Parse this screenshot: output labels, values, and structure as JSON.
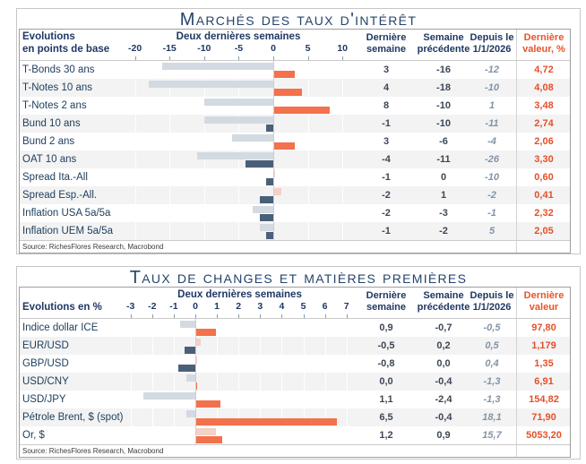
{
  "tables": [
    {
      "title": "Marchés des taux d'intérêt",
      "unit_label_lines": [
        "Evolutions",
        "en points de base"
      ],
      "chart_header": "Deux dernières semaines",
      "ticks": [
        "-20",
        "-15",
        "-10",
        "-5",
        "0",
        "5",
        "10"
      ],
      "col_headers": [
        [
          "Dernière",
          "semaine"
        ],
        [
          "Semaine",
          "précédente"
        ],
        [
          "Depuis le",
          "1/1/2026"
        ],
        [
          "Dernière",
          "valeur, %"
        ]
      ],
      "rows": [
        {
          "label": "T-Bonds 30 ans",
          "last": "3",
          "prev": "-16",
          "since": "-12",
          "value": "4,72"
        },
        {
          "label": "T-Notes 10 ans",
          "last": "4",
          "prev": "-18",
          "since": "-10",
          "value": "4,08"
        },
        {
          "label": "T-Notes 2 ans",
          "last": "8",
          "prev": "-10",
          "since": "1",
          "value": "3,48"
        },
        {
          "label": "Bund 10 ans",
          "last": "-1",
          "prev": "-10",
          "since": "-11",
          "value": "2,74"
        },
        {
          "label": "Bund 2 ans",
          "last": "3",
          "prev": "-6",
          "since": "-4",
          "value": "2,06"
        },
        {
          "label": "OAT 10 ans",
          "last": "-4",
          "prev": "-11",
          "since": "-26",
          "value": "3,30"
        },
        {
          "label": "Spread Ita.-All",
          "last": "-1",
          "prev": "0",
          "since": "-10",
          "value": "0,60"
        },
        {
          "label": "Spread Esp.-All.",
          "last": "-2",
          "prev": "1",
          "since": "-2",
          "value": "0,41"
        },
        {
          "label": "Inflation USA 5a/5a",
          "last": "-2",
          "prev": "-3",
          "since": "-1",
          "value": "2,32"
        },
        {
          "label": "Inflation UEM 5a/5a",
          "last": "-1",
          "prev": "-2",
          "since": "5",
          "value": "2,05"
        }
      ],
      "source": "Source: RichesFlores Research, Macrobond"
    },
    {
      "title": "Taux de changes et matières premières",
      "unit_label_lines": [
        "Evolutions en %"
      ],
      "chart_header": "Deux dernières semaines",
      "ticks": [
        "-3",
        "-2",
        "-1",
        "0",
        "1",
        "2",
        "3",
        "4",
        "5",
        "6",
        "7"
      ],
      "col_headers": [
        [
          "Dernière",
          "semaine"
        ],
        [
          "Semaine",
          "précédente"
        ],
        [
          "Depuis le",
          "1/1/2026"
        ],
        [
          "Dernière",
          "valeur"
        ]
      ],
      "rows": [
        {
          "label": "Indice dollar ICE",
          "last": "0,9",
          "prev": "-0,7",
          "since": "-0,5",
          "value": "97,80"
        },
        {
          "label": "EUR/USD",
          "last": "-0,5",
          "prev": "0,2",
          "since": "0,5",
          "value": "1,179"
        },
        {
          "label": "GBP/USD",
          "last": "-0,8",
          "prev": "0,0",
          "since": "0,4",
          "value": "1,35"
        },
        {
          "label": "USD/CNY",
          "last": "0,0",
          "prev": "-0,4",
          "since": "-1,3",
          "value": "6,91"
        },
        {
          "label": "USD/JPY",
          "last": "1,1",
          "prev": "-2,4",
          "since": "-1,3",
          "value": "154,82"
        },
        {
          "label": "Pétrole Brent, $ (spot)",
          "last": "6,5",
          "prev": "-0,4",
          "since": "18,1",
          "value": "71,90"
        },
        {
          "label": "Or, $",
          "last": "1,2",
          "prev": "0,9",
          "since": "15,7",
          "value": "5053,20"
        }
      ],
      "source": "Source: RichesFlores Research, Macrobond"
    }
  ],
  "chart_data": [
    {
      "type": "bar",
      "orientation": "horizontal",
      "title": "Marchés des taux d'intérêt — Deux dernières semaines (points de base)",
      "categories": [
        "T-Bonds 30 ans",
        "T-Notes 10 ans",
        "T-Notes 2 ans",
        "Bund 10 ans",
        "Bund 2 ans",
        "OAT 10 ans",
        "Spread Ita.-All",
        "Spread Esp.-All.",
        "Inflation USA 5a/5a",
        "Inflation UEM 5a/5a"
      ],
      "series": [
        {
          "name": "Dernière semaine",
          "values": [
            3,
            4,
            8,
            -1,
            3,
            -4,
            -1,
            -2,
            -2,
            -1
          ]
        },
        {
          "name": "Semaine précédente",
          "values": [
            -16,
            -18,
            -10,
            -10,
            -6,
            -11,
            0,
            1,
            -3,
            -2
          ]
        },
        {
          "name": "Depuis le 1/1/2026",
          "values": [
            -12,
            -10,
            1,
            -11,
            -4,
            -26,
            -10,
            -2,
            -1,
            5
          ]
        },
        {
          "name": "Dernière valeur, %",
          "values": [
            4.72,
            4.08,
            3.48,
            2.74,
            2.06,
            3.3,
            0.6,
            0.41,
            2.32,
            2.05
          ]
        }
      ],
      "xlim": [
        -22,
        12
      ],
      "x_ticks": [
        -20,
        -15,
        -10,
        -5,
        0,
        5,
        10
      ],
      "legend_position": "none"
    },
    {
      "type": "bar",
      "orientation": "horizontal",
      "title": "Taux de changes et matières premières — Deux dernières semaines (%)",
      "categories": [
        "Indice dollar ICE",
        "EUR/USD",
        "GBP/USD",
        "USD/CNY",
        "USD/JPY",
        "Pétrole Brent, $ (spot)",
        "Or, $"
      ],
      "series": [
        {
          "name": "Dernière semaine",
          "values": [
            0.9,
            -0.5,
            -0.8,
            0.0,
            1.1,
            6.5,
            1.2
          ]
        },
        {
          "name": "Semaine précédente",
          "values": [
            -0.7,
            0.2,
            0.0,
            -0.4,
            -2.4,
            -0.4,
            0.9
          ]
        },
        {
          "name": "Depuis le 1/1/2026",
          "values": [
            -0.5,
            0.5,
            0.4,
            -1.3,
            -1.3,
            18.1,
            15.7
          ]
        },
        {
          "name": "Dernière valeur",
          "values": [
            97.8,
            1.179,
            1.35,
            6.91,
            154.82,
            71.9,
            5053.2
          ]
        }
      ],
      "xlim": [
        -3.5,
        7.5
      ],
      "x_ticks": [
        -3,
        -2,
        -1,
        0,
        1,
        2,
        3,
        4,
        5,
        6,
        7
      ],
      "legend_position": "none"
    }
  ],
  "colors": {
    "navy_text": "#1f3864",
    "label_text": "#20405e",
    "value_text": "#3d4756",
    "since_text": "#8494a6",
    "accent_orange": "#e4502a",
    "bar_last_positive": "#f3714c",
    "bar_last_negative": "#4a6078",
    "bar_prev_negative": "#d3dae1",
    "bar_prev_positive": "#f6cfc6",
    "row_stripe": "#f3f3f3"
  }
}
